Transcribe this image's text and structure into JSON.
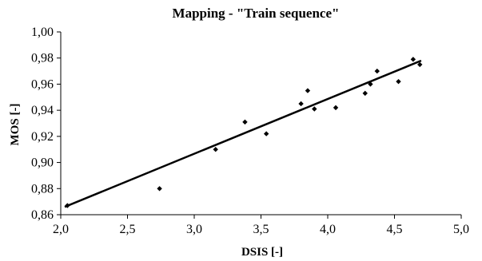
{
  "chart_data": {
    "type": "scatter",
    "title": "Mapping - \"Train sequence\"",
    "xlabel": "DSIS [-]",
    "ylabel": "MOS [-]",
    "xlim": [
      2.0,
      5.0
    ],
    "ylim": [
      0.86,
      1.0
    ],
    "x_ticks": [
      "2,0",
      "2,5",
      "3,0",
      "3,5",
      "4,0",
      "4,5",
      "5,0"
    ],
    "y_ticks": [
      "0,86",
      "0,88",
      "0,90",
      "0,92",
      "0,94",
      "0,96",
      "0,98",
      "1,00"
    ],
    "x_tick_values": [
      2.0,
      2.5,
      3.0,
      3.5,
      4.0,
      4.5,
      5.0
    ],
    "y_tick_values": [
      0.86,
      0.88,
      0.9,
      0.92,
      0.94,
      0.96,
      0.98,
      1.0
    ],
    "grid": false,
    "legend": "none",
    "series": [
      {
        "points": [
          {
            "x": 2.05,
            "y": 0.867
          },
          {
            "x": 2.74,
            "y": 0.88
          },
          {
            "x": 3.16,
            "y": 0.91
          },
          {
            "x": 3.38,
            "y": 0.931
          },
          {
            "x": 3.54,
            "y": 0.922
          },
          {
            "x": 3.8,
            "y": 0.945
          },
          {
            "x": 3.85,
            "y": 0.955
          },
          {
            "x": 3.9,
            "y": 0.941
          },
          {
            "x": 4.06,
            "y": 0.942
          },
          {
            "x": 4.28,
            "y": 0.953
          },
          {
            "x": 4.32,
            "y": 0.96
          },
          {
            "x": 4.37,
            "y": 0.97
          },
          {
            "x": 4.53,
            "y": 0.962
          },
          {
            "x": 4.64,
            "y": 0.979
          },
          {
            "x": 4.69,
            "y": 0.975
          }
        ],
        "marker": "diamond",
        "color": "#000000"
      }
    ],
    "trendline": {
      "type": "linear",
      "x": [
        2.03,
        4.7
      ],
      "y": [
        0.866,
        0.978
      ],
      "color": "#000000"
    }
  }
}
